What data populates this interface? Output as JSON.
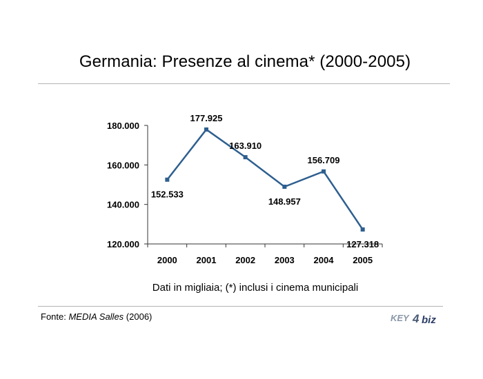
{
  "title": "Germania: Presenze al cinema* (2000-2005)",
  "note": "Dati in migliaia; (*) inclusi i cinema municipali",
  "source": {
    "prefix": "Fonte: ",
    "name": "MEDIA Salles",
    "suffix": " (2006)"
  },
  "logo": {
    "key": "KEY",
    "four": "4",
    "biz": "biz"
  },
  "colors": {
    "line": "#2e5f8f",
    "axis": "#333333",
    "rule": "#b3b3b3"
  },
  "chart_data": {
    "type": "line",
    "title": "Germania: Presenze al cinema* (2000-2005)",
    "categories": [
      "2000",
      "2001",
      "2002",
      "2003",
      "2004",
      "2005"
    ],
    "x": [
      2000,
      2001,
      2002,
      2003,
      2004,
      2005
    ],
    "values": [
      152533,
      177925,
      163910,
      148957,
      156709,
      127318
    ],
    "value_labels": [
      "152.533",
      "177.925",
      "163.910",
      "148.957",
      "156.709",
      "127.318"
    ],
    "label_position": [
      "below",
      "above",
      "above",
      "below",
      "above",
      "below"
    ],
    "ylim": [
      120000,
      180000
    ],
    "yticks": [
      120000,
      140000,
      160000,
      180000
    ],
    "ytick_labels": [
      "120.000",
      "140.000",
      "160.000",
      "180.000"
    ],
    "xlabel": "",
    "ylabel": "",
    "grid": false,
    "legend": "none"
  }
}
